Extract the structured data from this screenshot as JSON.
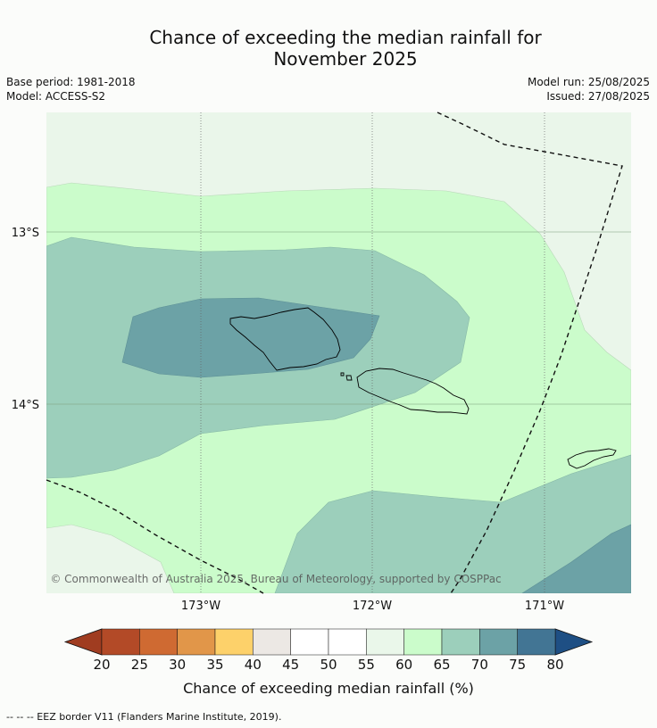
{
  "title_line1": "Chance of exceeding the median rainfall for",
  "title_line2": "November 2025",
  "base_period": "Base period: 1981-2018",
  "model": "Model: ACCESS-S2",
  "model_run": "Model run: 25/08/2025",
  "issued": "Issued: 27/08/2025",
  "copyright": "© Commonwealth of Australia 2025, Bureau of Meteorology, supported by COSPPac",
  "lon_labels": [
    "173°W",
    "172°W",
    "171°W"
  ],
  "lat_labels": [
    "13°S",
    "14°S"
  ],
  "colorbar": {
    "ticks": [
      "20",
      "25",
      "30",
      "35",
      "40",
      "45",
      "50",
      "55",
      "60",
      "65",
      "70",
      "75",
      "80"
    ],
    "colors": [
      "#b34a27",
      "#cf6a32",
      "#e19649",
      "#fdd16a",
      "#ece8e4",
      "#ffffff",
      "#ffffff",
      "#eaf7ea",
      "#cbfccb",
      "#9ccfbb",
      "#6ca2a6",
      "#427594"
    ],
    "under_color": "#a03c20",
    "over_color": "#1e4f84",
    "label": "Chance of exceeding median rainfall (%)"
  },
  "legend_note": "-- -- -- EEZ border V11 (Flanders Marine Institute, 2019)."
}
